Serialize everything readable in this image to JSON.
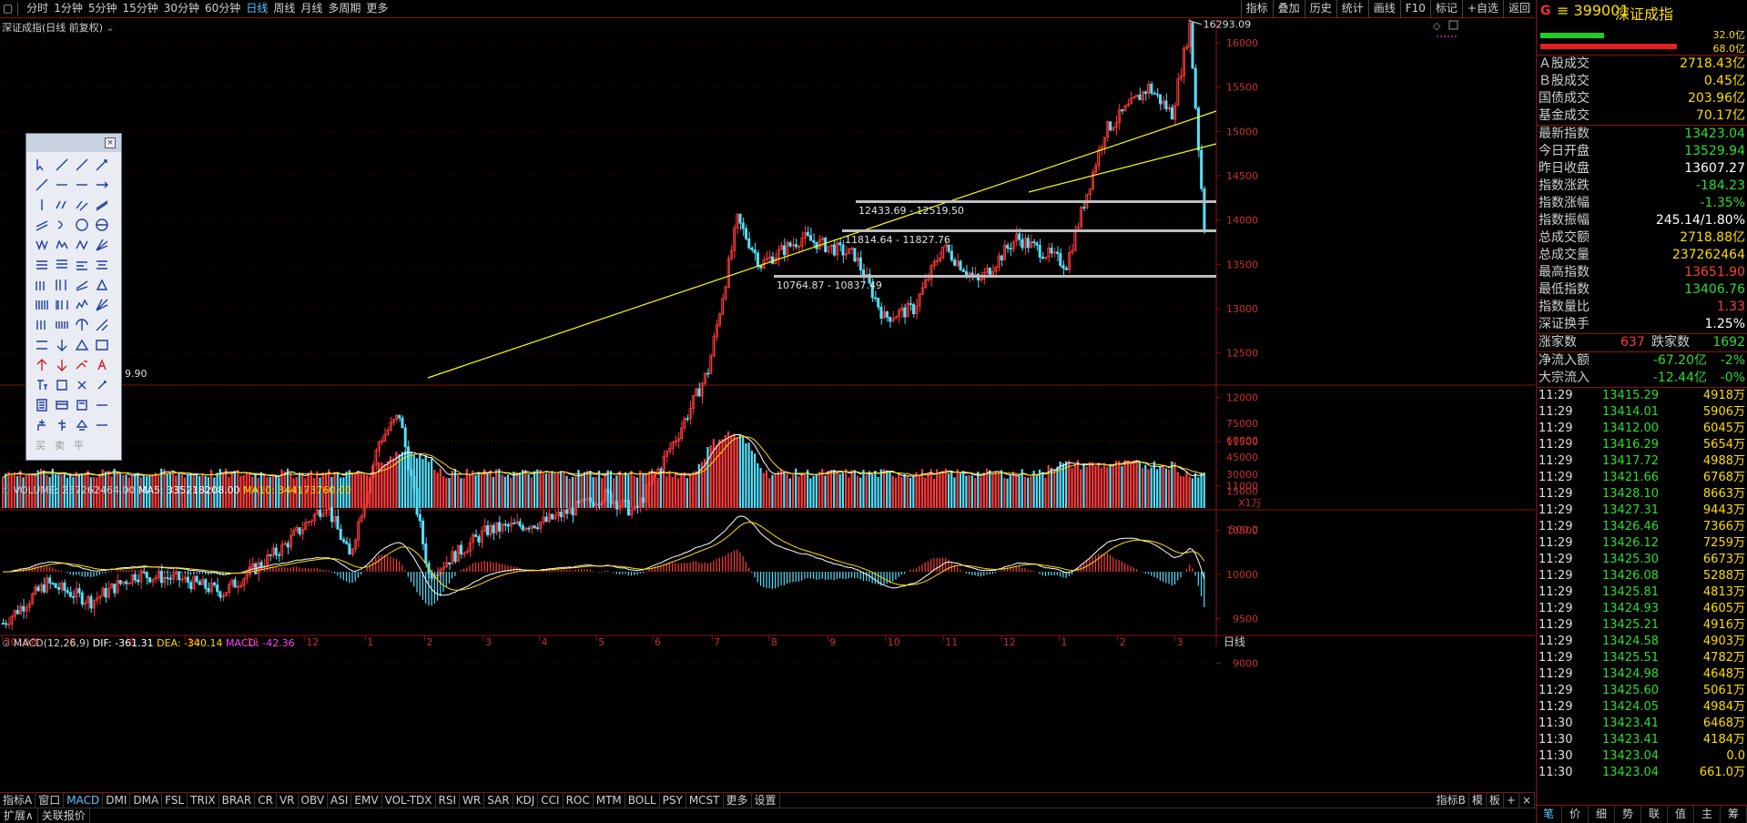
{
  "toolbar": {
    "left": [
      "分时",
      "1分钟",
      "5分钟",
      "15分钟",
      "30分钟",
      "60分钟",
      "日线",
      "周线",
      "月线",
      "多周期",
      "更多"
    ],
    "active": "日线",
    "right": [
      "指标",
      "叠加",
      "历史",
      "统计",
      "画线",
      "F10",
      "标记",
      "+自选",
      "返回"
    ]
  },
  "main": {
    "title": "深证成指(日线 前复权)",
    "high_label": "16293.09",
    "low_label": "9.90",
    "y_ticks": [
      "16000",
      "15500",
      "15000",
      "14500",
      "14000",
      "13500",
      "13000",
      "12500",
      "12000",
      "11500",
      "11000",
      "10500",
      "10000",
      "9500",
      "9000"
    ],
    "zones": [
      {
        "label": "12433.69 - 12519.50"
      },
      {
        "label": "11814.64 - 11827.76"
      },
      {
        "label": "10764.87 - 10837.49"
      }
    ]
  },
  "volume": {
    "label": "VOLUME: 237262464.00",
    "ma5": "MA5: 335218208.00",
    "ma10": "MA10: 344173760.00",
    "y_ticks": [
      "75000",
      "60000",
      "45000",
      "30000",
      "15000"
    ],
    "unit": "X1万"
  },
  "macd": {
    "label": "MACD(12,26,9)",
    "dif": "DIF: -361.31",
    "dea": "DEA: -340.14",
    "macd": "MACD: -42.36",
    "y_tick": "500.0"
  },
  "x_axis": {
    "labels": [
      "2019年",
      "8",
      "9",
      "10",
      "11",
      "12",
      "1",
      "2",
      "3",
      "4",
      "5",
      "6",
      "7",
      "8",
      "9",
      "10",
      "11",
      "12",
      "1",
      "2",
      "3"
    ],
    "period": "日线"
  },
  "toolbox": {
    "bottom": [
      "买",
      "卖",
      "平"
    ]
  },
  "quote": {
    "g": "G",
    "code": "≡ 399001",
    "name": "深证成指",
    "bar_top": "32.0亿",
    "bar_bottom": "68.0亿",
    "rows1": [
      {
        "k": "Ａ股成交",
        "v": "2718.43亿",
        "c": "yel"
      },
      {
        "k": "Ｂ股成交",
        "v": "0.45亿",
        "c": "yel"
      },
      {
        "k": "国债成交",
        "v": "203.96亿",
        "c": "yel"
      },
      {
        "k": "基金成交",
        "v": "70.17亿",
        "c": "yel"
      }
    ],
    "rows2": [
      {
        "k": "最新指数",
        "v": "13423.04",
        "c": "grn"
      },
      {
        "k": "今日开盘",
        "v": "13529.94",
        "c": "grn"
      },
      {
        "k": "昨日收盘",
        "v": "13607.27",
        "c": "wht"
      },
      {
        "k": "指数涨跌",
        "v": "-184.23",
        "c": "grn"
      },
      {
        "k": "指数涨幅",
        "v": "-1.35%",
        "c": "grn"
      },
      {
        "k": "指数振幅",
        "v": "245.14/1.80%",
        "c": "wht"
      },
      {
        "k": "总成交额",
        "v": "2718.88亿",
        "c": "yel"
      },
      {
        "k": "总成交量",
        "v": "237262464",
        "c": "yel"
      },
      {
        "k": "最高指数",
        "v": "13651.90",
        "c": "red"
      },
      {
        "k": "最低指数",
        "v": "13406.76",
        "c": "grn"
      },
      {
        "k": "指数量比",
        "v": "1.33",
        "c": "red"
      },
      {
        "k": "深证换手",
        "v": "1.25%",
        "c": "wht"
      }
    ],
    "updown": {
      "up_label": "涨家数",
      "up": "637",
      "down_label": "跌家数",
      "down": "1692"
    },
    "flow": [
      {
        "k": "净流入额",
        "v": "-67.20亿",
        "p": "-2%"
      },
      {
        "k": "大宗流入",
        "v": "-12.44亿",
        "p": "-0%"
      }
    ],
    "ticks": [
      [
        "11:29",
        "13415.29",
        "4918万"
      ],
      [
        "11:29",
        "13414.01",
        "5906万"
      ],
      [
        "11:29",
        "13412.00",
        "6045万"
      ],
      [
        "11:29",
        "13416.29",
        "5654万"
      ],
      [
        "11:29",
        "13417.72",
        "4988万"
      ],
      [
        "11:29",
        "13421.66",
        "6768万"
      ],
      [
        "11:29",
        "13428.10",
        "8663万"
      ],
      [
        "11:29",
        "13427.31",
        "9443万"
      ],
      [
        "11:29",
        "13426.46",
        "7366万"
      ],
      [
        "11:29",
        "13426.12",
        "7259万"
      ],
      [
        "11:29",
        "13425.30",
        "6673万"
      ],
      [
        "11:29",
        "13426.08",
        "5288万"
      ],
      [
        "11:29",
        "13425.81",
        "4813万"
      ],
      [
        "11:29",
        "13424.93",
        "4605万"
      ],
      [
        "11:29",
        "13425.21",
        "4916万"
      ],
      [
        "11:29",
        "13424.58",
        "4903万"
      ],
      [
        "11:29",
        "13425.51",
        "4782万"
      ],
      [
        "11:29",
        "13424.98",
        "4648万"
      ],
      [
        "11:29",
        "13425.60",
        "5061万"
      ],
      [
        "11:29",
        "13424.05",
        "4984万"
      ],
      [
        "11:30",
        "13423.41",
        "6468万"
      ],
      [
        "11:30",
        "13423.41",
        "4184万"
      ],
      [
        "11:30",
        "13423.04",
        "0.0"
      ],
      [
        "11:30",
        "13423.04",
        "661.0万"
      ]
    ],
    "tabs": [
      "笔",
      "价",
      "细",
      "势",
      "联",
      "值",
      "主",
      "筹"
    ]
  },
  "bottom": {
    "tabs": [
      "指标A",
      "窗口",
      "MACD",
      "DMI",
      "DMA",
      "FSL",
      "TRIX",
      "BRAR",
      "CR",
      "VR",
      "OBV",
      "ASI",
      "EMV",
      "VOL-TDX",
      "RSI",
      "WR",
      "SAR",
      "KDJ",
      "CCI",
      "ROC",
      "MTM",
      "BOLL",
      "PSY",
      "MCST",
      "更多",
      "设置"
    ],
    "active": "MACD",
    "right": [
      "指标B",
      "模",
      "板",
      "+",
      "×"
    ],
    "row2": [
      "扩展∧",
      "关联报价"
    ]
  },
  "colors": {
    "up": "#ff3b3b",
    "down": "#54e0ff",
    "ma5": "#ffffff",
    "ma10": "#ffdd00",
    "frame": "#8a1010",
    "line": "#ffff00"
  }
}
